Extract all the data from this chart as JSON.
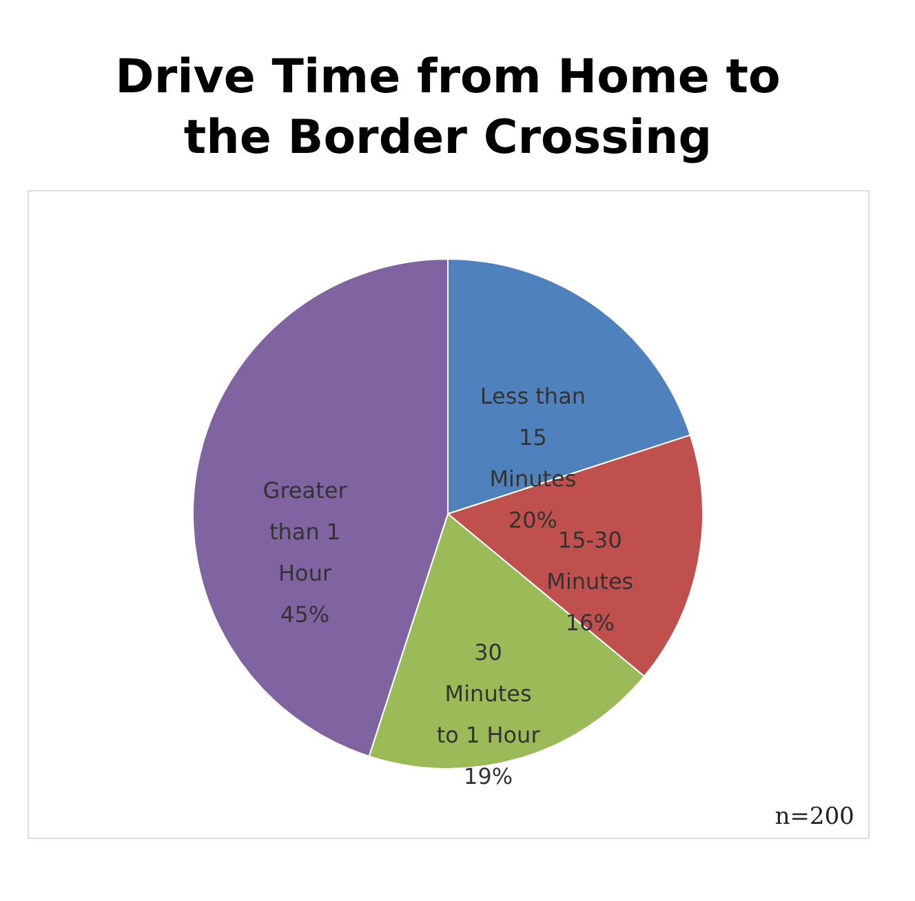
{
  "chart_data": {
    "type": "pie",
    "title": "Drive Time from Home to the Border Crossing",
    "categories": [
      "Less than 15 Minutes",
      "15-30 Minutes",
      "30 Minutes to 1 Hour",
      "Greater than 1 Hour"
    ],
    "values": [
      20,
      16,
      19,
      45
    ],
    "colors": [
      "#4f81bd",
      "#c0504d",
      "#9bbb59",
      "#8064a2"
    ],
    "value_labels": [
      "20%",
      "16%",
      "19%",
      "45%"
    ],
    "legend": false,
    "annotations": [
      "n=200"
    ]
  }
}
